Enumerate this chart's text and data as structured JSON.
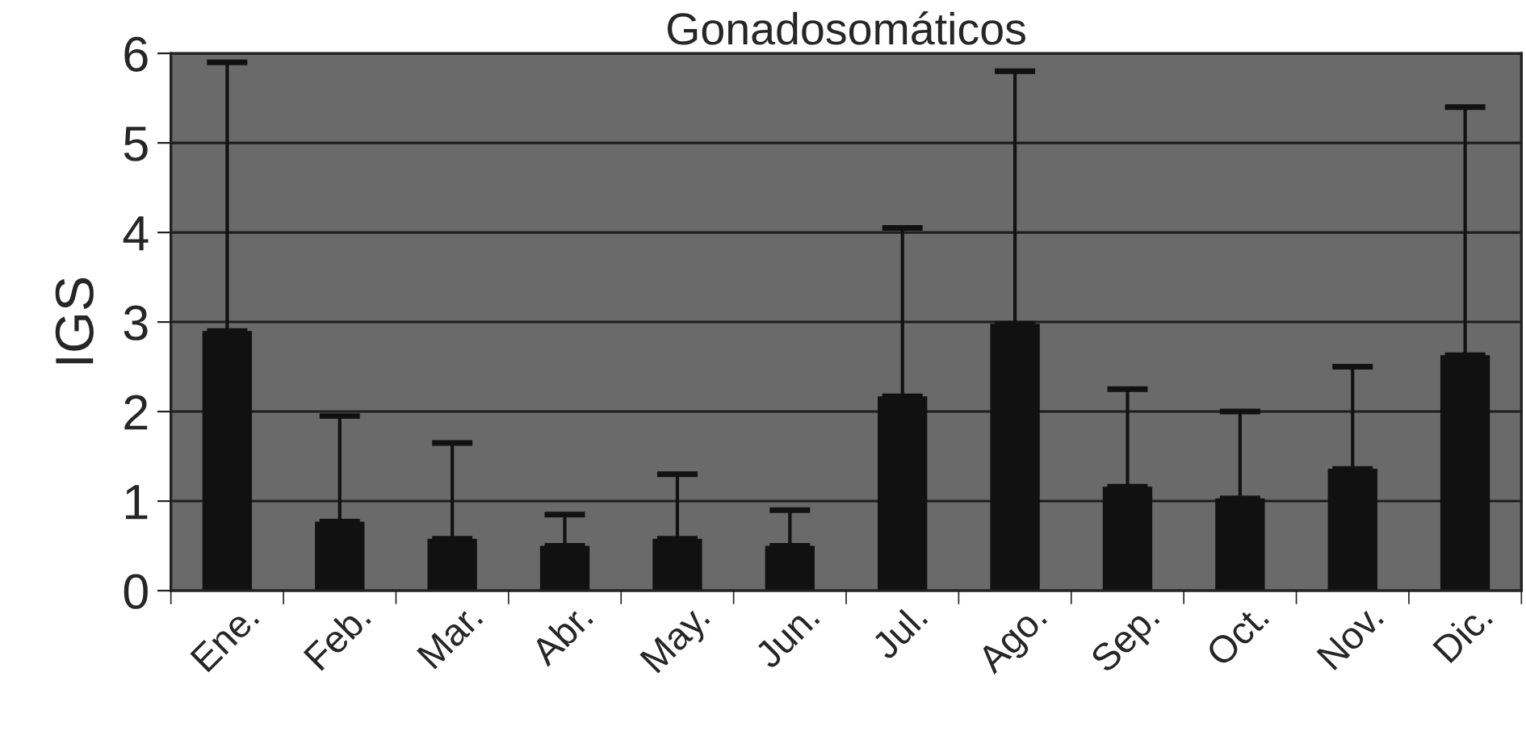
{
  "chart_data": {
    "type": "bar",
    "title": "Gonadosomáticos",
    "ylabel": "IGS",
    "categories": [
      "Ene.",
      "Feb.",
      "Mar.",
      "Abr.",
      "May.",
      "Jun.",
      "Jul.",
      "Ago.",
      "Sep.",
      "Oct.",
      "Nov.",
      "Dic."
    ],
    "values": [
      2.9,
      0.77,
      0.58,
      0.5,
      0.58,
      0.5,
      2.17,
      2.98,
      1.16,
      1.03,
      1.36,
      2.63
    ],
    "errors": [
      [
        2.9,
        5.9
      ],
      [
        0.77,
        1.95
      ],
      [
        0.58,
        1.65
      ],
      [
        0.5,
        0.85
      ],
      [
        0.58,
        1.3
      ],
      [
        0.5,
        0.9
      ],
      [
        2.17,
        4.05
      ],
      [
        2.98,
        5.8
      ],
      [
        1.16,
        2.25
      ],
      [
        1.03,
        2.0
      ],
      [
        1.36,
        2.5
      ],
      [
        2.63,
        5.4
      ]
    ],
    "color": "#111111",
    "ylim": [
      0,
      6
    ],
    "yticks": [
      0,
      1,
      2,
      3,
      4,
      5,
      6
    ],
    "grid": "y"
  }
}
